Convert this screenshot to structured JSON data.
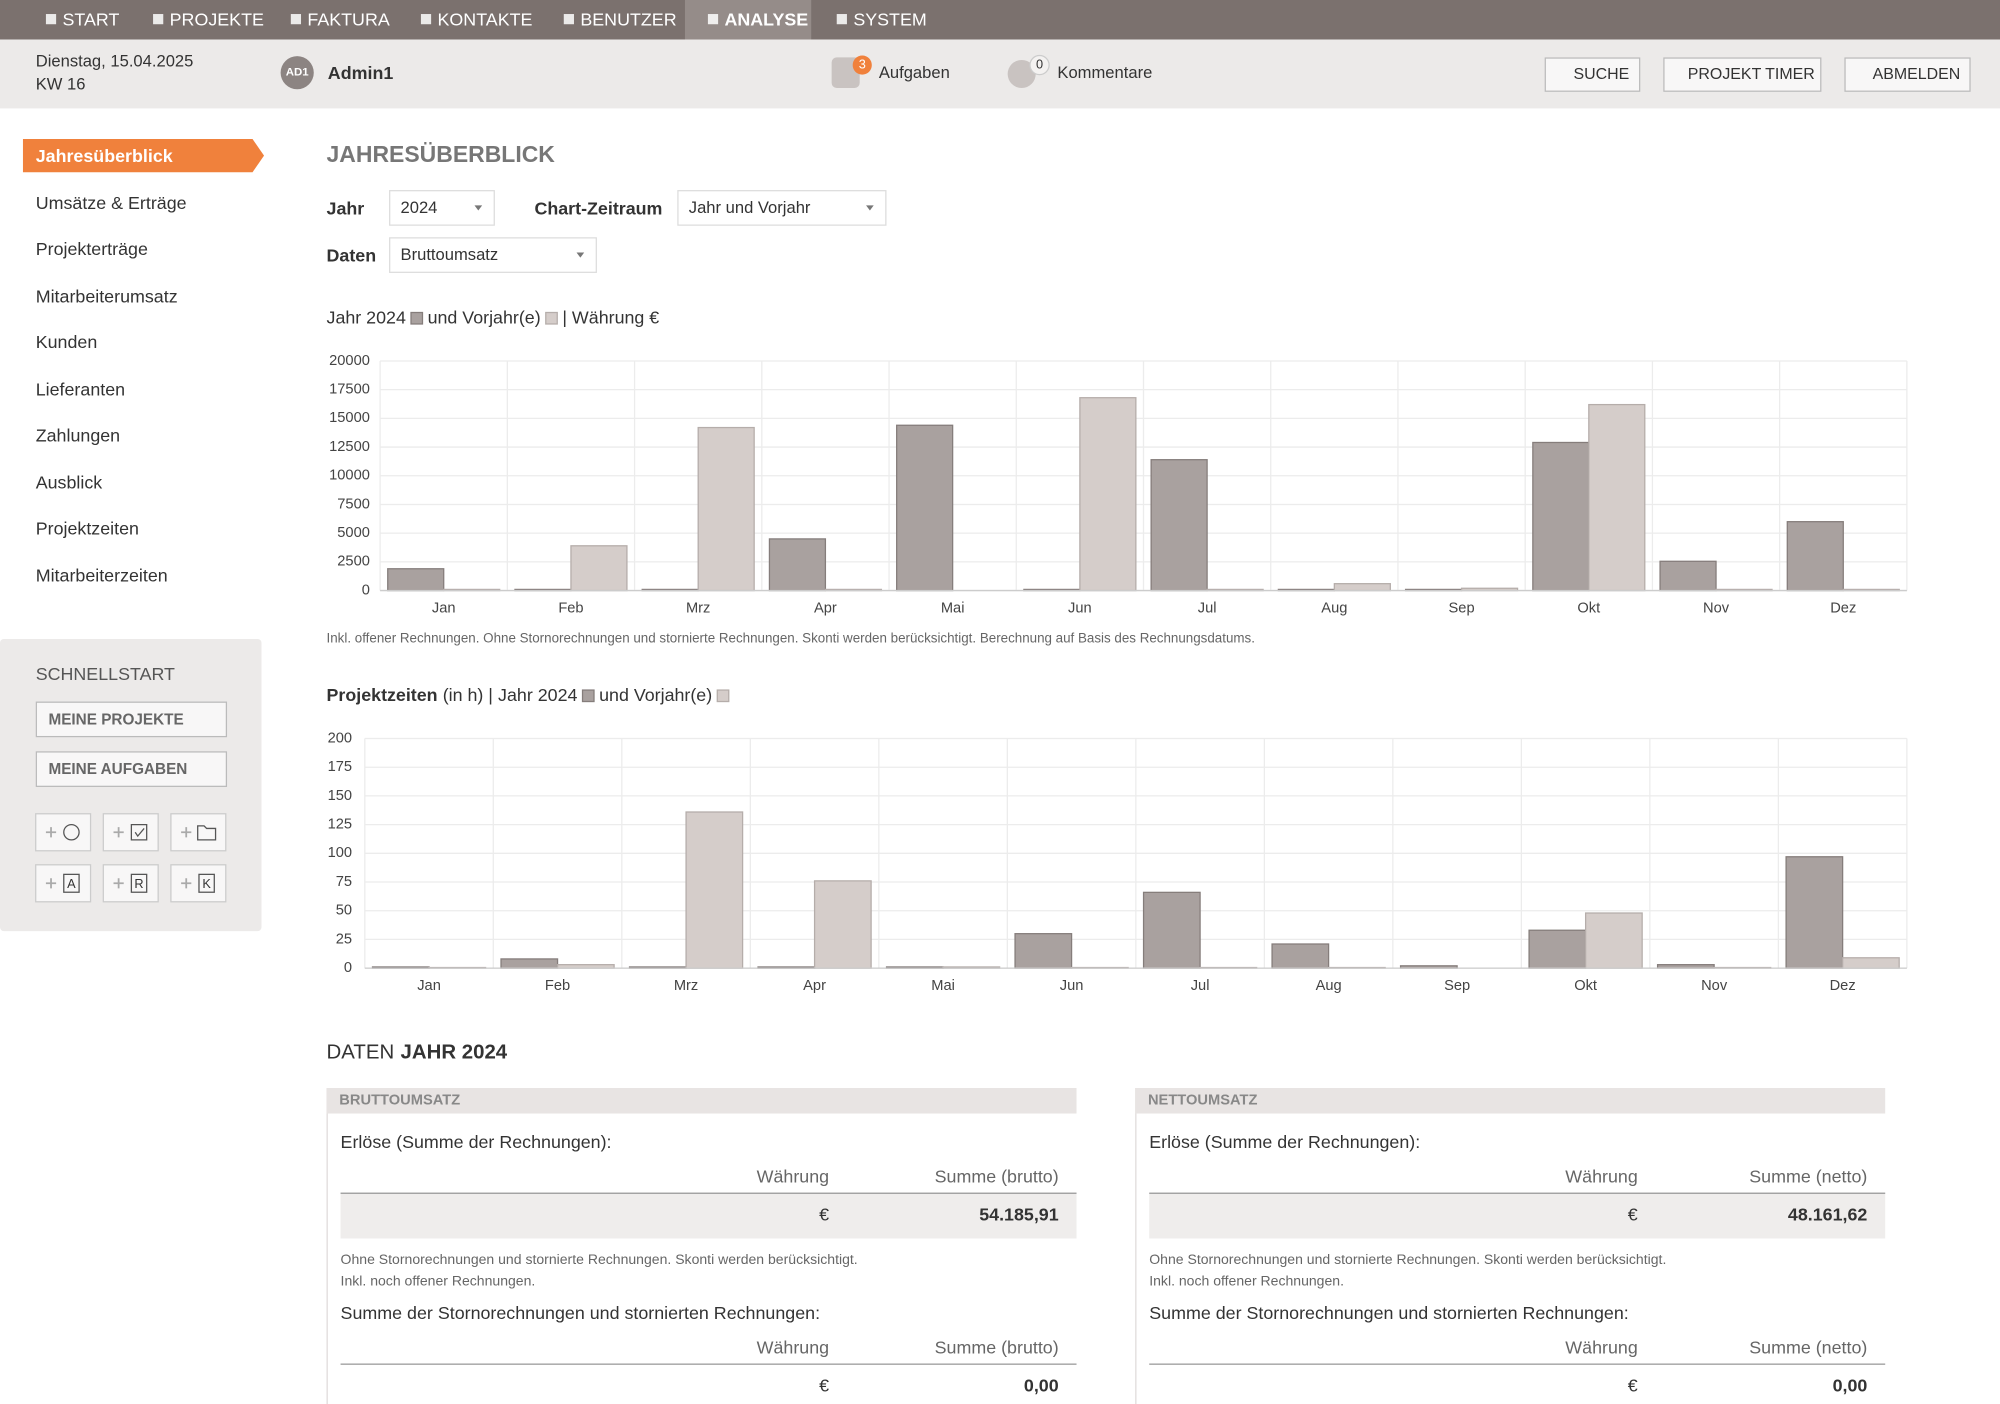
{
  "nav": [
    "START",
    "PROJEKTE",
    "FAKTURA",
    "KONTAKTE",
    "BENUTZER",
    "ANALYSE",
    "SYSTEM"
  ],
  "header": {
    "date": "Dienstag, 15.04.2025",
    "week": "KW 16",
    "avatar": "AD1",
    "user": "Admin1",
    "tasks": {
      "count": 3,
      "label": "Aufgaben"
    },
    "comments": {
      "count": 0,
      "label": "Kommentare"
    },
    "buttons": [
      "SUCHE",
      "PROJEKT TIMER",
      "ABMELDEN"
    ]
  },
  "sidebar": {
    "items": [
      "Jahresüberblick",
      "Umsätze & Erträge",
      "Projekterträge",
      "Mitarbeiterumsatz",
      "Kunden",
      "Lieferanten",
      "Zahlungen",
      "Ausblick",
      "Projektzeiten",
      "Mitarbeiterzeiten"
    ],
    "quickstart": {
      "title": "SCHNELLSTART",
      "buttons": [
        "MEINE PROJEKTE",
        "MEINE AUFGABEN"
      ],
      "letters": [
        "A",
        "R",
        "K"
      ]
    }
  },
  "main": {
    "title": "JAHRESÜBERBLICK",
    "filters": [
      {
        "label": "Jahr",
        "value": "2024"
      },
      {
        "label": "Chart-Zeitraum",
        "value": "Jahr und Vorjahr"
      },
      {
        "label": "Daten",
        "value": "Bruttoumsatz"
      }
    ]
  },
  "chart_data": [
    {
      "type": "bar",
      "title_suffix": "| Währung €",
      "categories": [
        "Jan",
        "Feb",
        "Mrz",
        "Apr",
        "Mai",
        "Jun",
        "Jul",
        "Aug",
        "Sep",
        "Okt",
        "Nov",
        "Dez"
      ],
      "series": [
        {
          "name": "Jahr 2024",
          "color": "#a9a19f",
          "values": [
            1900,
            100,
            100,
            4500,
            14400,
            100,
            11400,
            100,
            100,
            12900,
            2550,
            6000
          ]
        },
        {
          "name": "und Vorjahr(e)",
          "color": "#d5cdca",
          "values": [
            100,
            3900,
            14200,
            100,
            0,
            16800,
            100,
            600,
            200,
            16200,
            100,
            100
          ]
        }
      ],
      "ylim": [
        0,
        20000
      ],
      "yticks": [
        0,
        2500,
        5000,
        7500,
        10000,
        12500,
        15000,
        17500,
        20000
      ],
      "grid": true,
      "note": "Inkl. offener Rechnungen. Ohne Stornorechnungen und stornierte Rechnungen. Skonti werden berücksichtigt. Berechnung auf Basis des Rechnungsdatums."
    },
    {
      "type": "bar",
      "title": "Projektzeiten",
      "unit": "(in h) |",
      "categories": [
        "Jan",
        "Feb",
        "Mrz",
        "Apr",
        "Mai",
        "Jun",
        "Jul",
        "Aug",
        "Sep",
        "Okt",
        "Nov",
        "Dez"
      ],
      "series": [
        {
          "name": "Jahr 2024",
          "color": "#a9a19f",
          "values": [
            1,
            8,
            1,
            1,
            1,
            30,
            66,
            21,
            2,
            33,
            3,
            97
          ]
        },
        {
          "name": "und Vorjahr(e)",
          "color": "#d5cdca",
          "values": [
            0.5,
            3,
            136,
            76,
            1,
            0.5,
            0.5,
            0.5,
            0,
            48,
            0.5,
            9
          ]
        }
      ],
      "ylim": [
        0,
        200
      ],
      "yticks": [
        0,
        25,
        50,
        75,
        100,
        125,
        150,
        175,
        200
      ],
      "grid": true
    }
  ],
  "data_section": {
    "title": "DATEN",
    "title_bold": "JAHR 2024",
    "panels": [
      {
        "header": "BRUTTOUMSATZ",
        "sections": [
          {
            "title": "Erlöse (Summe der Rechnungen):",
            "columns": [
              "Währung",
              "Summe (brutto)"
            ],
            "row": [
              "€",
              "54.185,91"
            ],
            "notes": [
              "Ohne Stornorechnungen und stornierte Rechnungen. Skonti werden berücksichtigt.",
              "Inkl. noch offener Rechnungen."
            ]
          },
          {
            "title": "Summe der Stornorechnungen und stornierten Rechnungen:",
            "columns": [
              "Währung",
              "Summe (brutto)"
            ],
            "row": [
              "€",
              "0,00"
            ]
          }
        ]
      },
      {
        "header": "NETTOUMSATZ",
        "sections": [
          {
            "title": "Erlöse (Summe der Rechnungen):",
            "columns": [
              "Währung",
              "Summe (netto)"
            ],
            "row": [
              "€",
              "48.161,62"
            ],
            "notes": [
              "Ohne Stornorechnungen und stornierte Rechnungen. Skonti werden berücksichtigt.",
              "Inkl. noch offener Rechnungen."
            ]
          },
          {
            "title": "Summe der Stornorechnungen und stornierten Rechnungen:",
            "columns": [
              "Währung",
              "Summe (netto)"
            ],
            "row": [
              "€",
              "0,00"
            ]
          }
        ]
      }
    ]
  }
}
